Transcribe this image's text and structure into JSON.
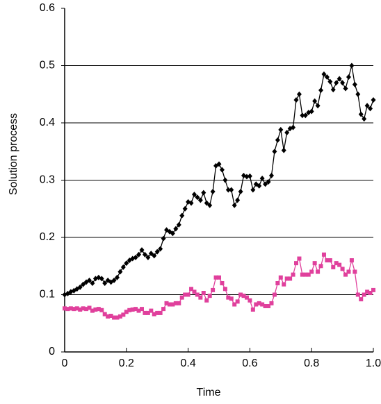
{
  "chart_data": {
    "type": "line",
    "x_label": "Time",
    "y_label": "Solution process",
    "x": [
      0,
      0.01,
      0.02,
      0.03,
      0.04,
      0.05,
      0.06,
      0.07,
      0.08,
      0.09,
      0.1,
      0.11,
      0.12,
      0.13,
      0.14,
      0.15,
      0.16,
      0.17,
      0.18,
      0.19,
      0.2,
      0.21,
      0.22,
      0.23,
      0.24,
      0.25,
      0.26,
      0.27,
      0.28,
      0.29,
      0.3,
      0.31,
      0.32,
      0.33,
      0.34,
      0.35,
      0.36,
      0.37,
      0.38,
      0.39,
      0.4,
      0.41,
      0.42,
      0.43,
      0.44,
      0.45,
      0.46,
      0.47,
      0.48,
      0.49,
      0.5,
      0.51,
      0.52,
      0.53,
      0.54,
      0.55,
      0.56,
      0.57,
      0.58,
      0.59,
      0.6,
      0.61,
      0.62,
      0.63,
      0.64,
      0.65,
      0.66,
      0.67,
      0.68,
      0.69,
      0.7,
      0.71,
      0.72,
      0.73,
      0.74,
      0.75,
      0.76,
      0.77,
      0.78,
      0.79,
      0.8,
      0.81,
      0.82,
      0.83,
      0.84,
      0.85,
      0.86,
      0.87,
      0.88,
      0.89,
      0.9,
      0.91,
      0.92,
      0.93,
      0.94,
      0.95,
      0.96,
      0.97,
      0.98,
      0.99,
      1.0
    ],
    "series": [
      {
        "color": "#000000",
        "marker": "diamond",
        "values": [
          0.1,
          0.102,
          0.105,
          0.107,
          0.11,
          0.113,
          0.118,
          0.122,
          0.125,
          0.12,
          0.128,
          0.13,
          0.128,
          0.12,
          0.125,
          0.122,
          0.125,
          0.13,
          0.14,
          0.148,
          0.155,
          0.16,
          0.163,
          0.165,
          0.17,
          0.178,
          0.17,
          0.165,
          0.172,
          0.168,
          0.175,
          0.18,
          0.198,
          0.213,
          0.21,
          0.207,
          0.215,
          0.222,
          0.238,
          0.25,
          0.262,
          0.26,
          0.275,
          0.27,
          0.265,
          0.278,
          0.26,
          0.256,
          0.28,
          0.325,
          0.328,
          0.318,
          0.3,
          0.283,
          0.283,
          0.256,
          0.265,
          0.28,
          0.308,
          0.306,
          0.307,
          0.283,
          0.293,
          0.29,
          0.303,
          0.293,
          0.297,
          0.308,
          0.35,
          0.37,
          0.388,
          0.352,
          0.383,
          0.39,
          0.392,
          0.44,
          0.45,
          0.413,
          0.413,
          0.418,
          0.42,
          0.438,
          0.43,
          0.457,
          0.485,
          0.48,
          0.472,
          0.458,
          0.47,
          0.477,
          0.47,
          0.46,
          0.48,
          0.5,
          0.467,
          0.45,
          0.415,
          0.407,
          0.43,
          0.425,
          0.44
        ]
      },
      {
        "color": "#e0409c",
        "marker": "square",
        "values": [
          0.076,
          0.075,
          0.076,
          0.075,
          0.076,
          0.074,
          0.076,
          0.075,
          0.077,
          0.072,
          0.074,
          0.075,
          0.073,
          0.066,
          0.062,
          0.063,
          0.06,
          0.06,
          0.062,
          0.065,
          0.07,
          0.073,
          0.074,
          0.075,
          0.072,
          0.075,
          0.068,
          0.068,
          0.072,
          0.066,
          0.068,
          0.068,
          0.075,
          0.085,
          0.083,
          0.083,
          0.085,
          0.085,
          0.095,
          0.1,
          0.1,
          0.11,
          0.105,
          0.1,
          0.095,
          0.103,
          0.09,
          0.098,
          0.108,
          0.13,
          0.13,
          0.12,
          0.11,
          0.095,
          0.093,
          0.083,
          0.088,
          0.1,
          0.098,
          0.095,
          0.09,
          0.074,
          0.083,
          0.085,
          0.083,
          0.08,
          0.08,
          0.085,
          0.1,
          0.12,
          0.13,
          0.118,
          0.128,
          0.128,
          0.135,
          0.155,
          0.163,
          0.135,
          0.135,
          0.135,
          0.14,
          0.155,
          0.14,
          0.15,
          0.17,
          0.16,
          0.16,
          0.148,
          0.155,
          0.152,
          0.145,
          0.135,
          0.14,
          0.16,
          0.14,
          0.1,
          0.092,
          0.1,
          0.105,
          0.103,
          0.108
        ]
      }
    ],
    "xlim": [
      0,
      1
    ],
    "xticks": [
      0,
      0.2,
      0.4,
      0.6,
      0.8,
      {
        "value": 1,
        "label": "1.0"
      }
    ],
    "ylim": [
      0,
      0.6
    ],
    "yticks": [
      0,
      0.1,
      0.2,
      0.3,
      0.4,
      0.5,
      0.6
    ],
    "grid": true
  }
}
